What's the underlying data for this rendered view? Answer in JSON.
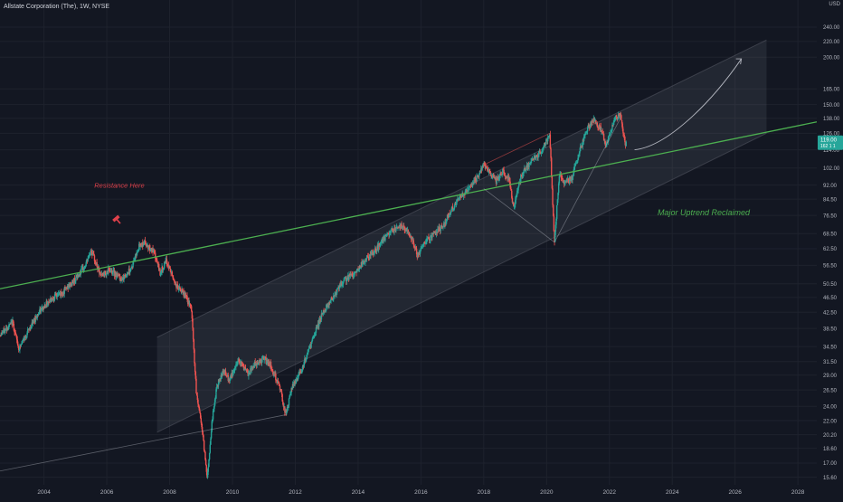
{
  "header": {
    "symbol_title": "Allstate Corporation (The), 1W, NYSE"
  },
  "colors": {
    "background": "#131722",
    "up": "#26a69a",
    "down": "#ef5350",
    "trendline": "#4caf50",
    "channel": "#787b86",
    "price_badge": "#26a69a",
    "annotation_red": "#e0414b",
    "annotation_green": "#4caf50"
  },
  "chart_data": {
    "type": "candlestick",
    "title": "Allstate Corporation (The), 1W, NYSE",
    "ylabel": "USD",
    "scale": "log",
    "xlim": [
      2002.6,
      2028.6
    ],
    "ylim": [
      14.9,
      265
    ],
    "grid": true,
    "x_ticks": [
      "2004",
      "2006",
      "2008",
      "2010",
      "2012",
      "2014",
      "2016",
      "2018",
      "2020",
      "2022",
      "2024",
      "2026",
      "2028"
    ],
    "y_ticks": [
      "240.00",
      "220.00",
      "200.00",
      "165.00",
      "150.00",
      "138.00",
      "126.00",
      "114.00",
      "102.00",
      "92.00",
      "84.50",
      "76.50",
      "68.50",
      "62.50",
      "56.50",
      "50.50",
      "46.50",
      "42.50",
      "38.50",
      "34.50",
      "31.50",
      "29.00",
      "26.50",
      "24.00",
      "22.00",
      "20.20",
      "18.60",
      "17.00",
      "15.60"
    ],
    "current_price": {
      "label": "119.00",
      "sub": "162 1 1",
      "value": 119
    },
    "price_path": [
      [
        2002.6,
        37
      ],
      [
        2003.0,
        40
      ],
      [
        2003.2,
        34
      ],
      [
        2003.5,
        38
      ],
      [
        2003.8,
        42
      ],
      [
        2004.2,
        46
      ],
      [
        2004.6,
        48
      ],
      [
        2005.0,
        52
      ],
      [
        2005.3,
        56
      ],
      [
        2005.5,
        62
      ],
      [
        2005.8,
        53
      ],
      [
        2006.1,
        55
      ],
      [
        2006.5,
        52
      ],
      [
        2006.8,
        56
      ],
      [
        2007.0,
        63
      ],
      [
        2007.2,
        65
      ],
      [
        2007.5,
        61
      ],
      [
        2007.7,
        54
      ],
      [
        2007.9,
        58
      ],
      [
        2008.2,
        50
      ],
      [
        2008.5,
        47
      ],
      [
        2008.7,
        43
      ],
      [
        2008.75,
        36
      ],
      [
        2008.85,
        26
      ],
      [
        2009.0,
        22
      ],
      [
        2009.15,
        17
      ],
      [
        2009.2,
        15.6
      ],
      [
        2009.35,
        22
      ],
      [
        2009.5,
        27
      ],
      [
        2009.7,
        30
      ],
      [
        2009.9,
        28
      ],
      [
        2010.2,
        32
      ],
      [
        2010.5,
        29
      ],
      [
        2010.7,
        31
      ],
      [
        2011.0,
        32
      ],
      [
        2011.2,
        31
      ],
      [
        2011.5,
        27
      ],
      [
        2011.7,
        22.8
      ],
      [
        2011.9,
        27
      ],
      [
        2012.2,
        30
      ],
      [
        2012.5,
        35
      ],
      [
        2012.8,
        41
      ],
      [
        2013.0,
        44
      ],
      [
        2013.3,
        48
      ],
      [
        2013.6,
        52
      ],
      [
        2013.9,
        54
      ],
      [
        2014.2,
        58
      ],
      [
        2014.5,
        61
      ],
      [
        2014.8,
        66
      ],
      [
        2015.1,
        70
      ],
      [
        2015.4,
        72
      ],
      [
        2015.7,
        67
      ],
      [
        2015.9,
        60
      ],
      [
        2016.1,
        65
      ],
      [
        2016.4,
        68
      ],
      [
        2016.7,
        72
      ],
      [
        2017.0,
        80
      ],
      [
        2017.4,
        88
      ],
      [
        2017.8,
        96
      ],
      [
        2018.0,
        104
      ],
      [
        2018.2,
        98
      ],
      [
        2018.4,
        94
      ],
      [
        2018.6,
        100
      ],
      [
        2018.8,
        96
      ],
      [
        2018.95,
        80
      ],
      [
        2019.2,
        98
      ],
      [
        2019.5,
        106
      ],
      [
        2019.8,
        112
      ],
      [
        2020.0,
        120
      ],
      [
        2020.1,
        126
      ],
      [
        2020.2,
        80
      ],
      [
        2020.25,
        65
      ],
      [
        2020.4,
        98
      ],
      [
        2020.6,
        93
      ],
      [
        2020.8,
        96
      ],
      [
        2021.0,
        110
      ],
      [
        2021.3,
        130
      ],
      [
        2021.5,
        136
      ],
      [
        2021.7,
        130
      ],
      [
        2021.9,
        118
      ],
      [
        2022.0,
        126
      ],
      [
        2022.2,
        138
      ],
      [
        2022.35,
        142
      ],
      [
        2022.5,
        118
      ],
      [
        2022.55,
        119
      ]
    ],
    "trendline": {
      "from": [
        2002.6,
        49
      ],
      "to": [
        2028.6,
        135
      ],
      "color": "#4caf50"
    },
    "channel": {
      "start_year": 2007.6,
      "end_year": 2027.0,
      "upper": [
        [
          2007.6,
          36.5
        ],
        [
          2027.0,
          222
        ]
      ],
      "lower": [
        [
          2007.6,
          20.5
        ],
        [
          2027.0,
          126
        ]
      ]
    },
    "lower_line": {
      "from": [
        2002.6,
        16.2
      ],
      "to": [
        2011.7,
        22.8
      ]
    },
    "pattern_lines": [
      [
        [
          2018.0,
          104
        ],
        [
          2020.1,
          126
        ]
      ],
      [
        [
          2018.0,
          90
        ],
        [
          2020.25,
          65
        ],
        [
          2022.35,
          138
        ]
      ]
    ],
    "projection": [
      [
        2022.8,
        114
      ],
      [
        2023.8,
        116
      ],
      [
        2025.2,
        150
      ],
      [
        2026.2,
        198
      ]
    ],
    "annotations": [
      {
        "text": "Resistance Here",
        "x": 2006.4,
        "y": 90.5,
        "color": "#e0414b"
      },
      {
        "text": "Major Uptrend Reclaimed",
        "x": 2025.0,
        "y": 76.5,
        "color": "#4caf50"
      }
    ]
  }
}
